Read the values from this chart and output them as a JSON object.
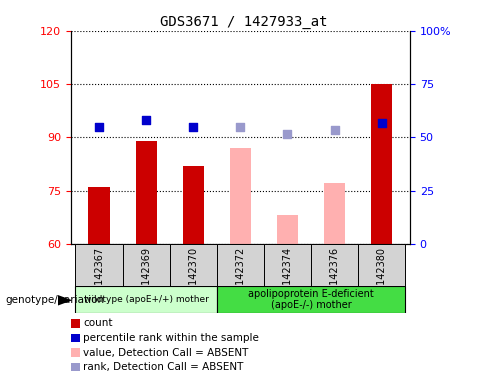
{
  "title": "GDS3671 / 1427933_at",
  "samples": [
    "GSM142367",
    "GSM142369",
    "GSM142370",
    "GSM142372",
    "GSM142374",
    "GSM142376",
    "GSM142380"
  ],
  "count_values": [
    76,
    89,
    82,
    null,
    null,
    null,
    105
  ],
  "count_absent_values": [
    null,
    null,
    null,
    87,
    68,
    77,
    null
  ],
  "rank_values": [
    93,
    95,
    93,
    null,
    null,
    null,
    94
  ],
  "rank_absent_values": [
    null,
    null,
    null,
    93,
    91,
    92,
    null
  ],
  "ylim_left": [
    60,
    120
  ],
  "ylim_right": [
    0,
    100
  ],
  "yticks_left": [
    60,
    75,
    90,
    105,
    120
  ],
  "yticks_right": [
    0,
    25,
    50,
    75,
    100
  ],
  "ytick_labels_right": [
    "0",
    "25",
    "50",
    "75",
    "100%"
  ],
  "bar_color_present": "#cc0000",
  "bar_color_absent": "#ffb0b0",
  "dot_color_present": "#0000cc",
  "dot_color_absent": "#9999cc",
  "group1_label": "wildtype (apoE+/+) mother",
  "group2_label": "apolipoprotein E-deficient\n(apoE-/-) mother",
  "group1_indices": [
    0,
    1,
    2
  ],
  "group2_indices": [
    3,
    4,
    5,
    6
  ],
  "group1_color": "#ccffcc",
  "group2_color": "#44dd44",
  "legend_items": [
    {
      "label": "count",
      "color": "#cc0000"
    },
    {
      "label": "percentile rank within the sample",
      "color": "#0000cc"
    },
    {
      "label": "value, Detection Call = ABSENT",
      "color": "#ffb0b0"
    },
    {
      "label": "rank, Detection Call = ABSENT",
      "color": "#9999cc"
    }
  ],
  "genotype_label": "genotype/variation",
  "dot_size": 40,
  "bar_width": 0.45,
  "rank_scale_factor": 0.6
}
